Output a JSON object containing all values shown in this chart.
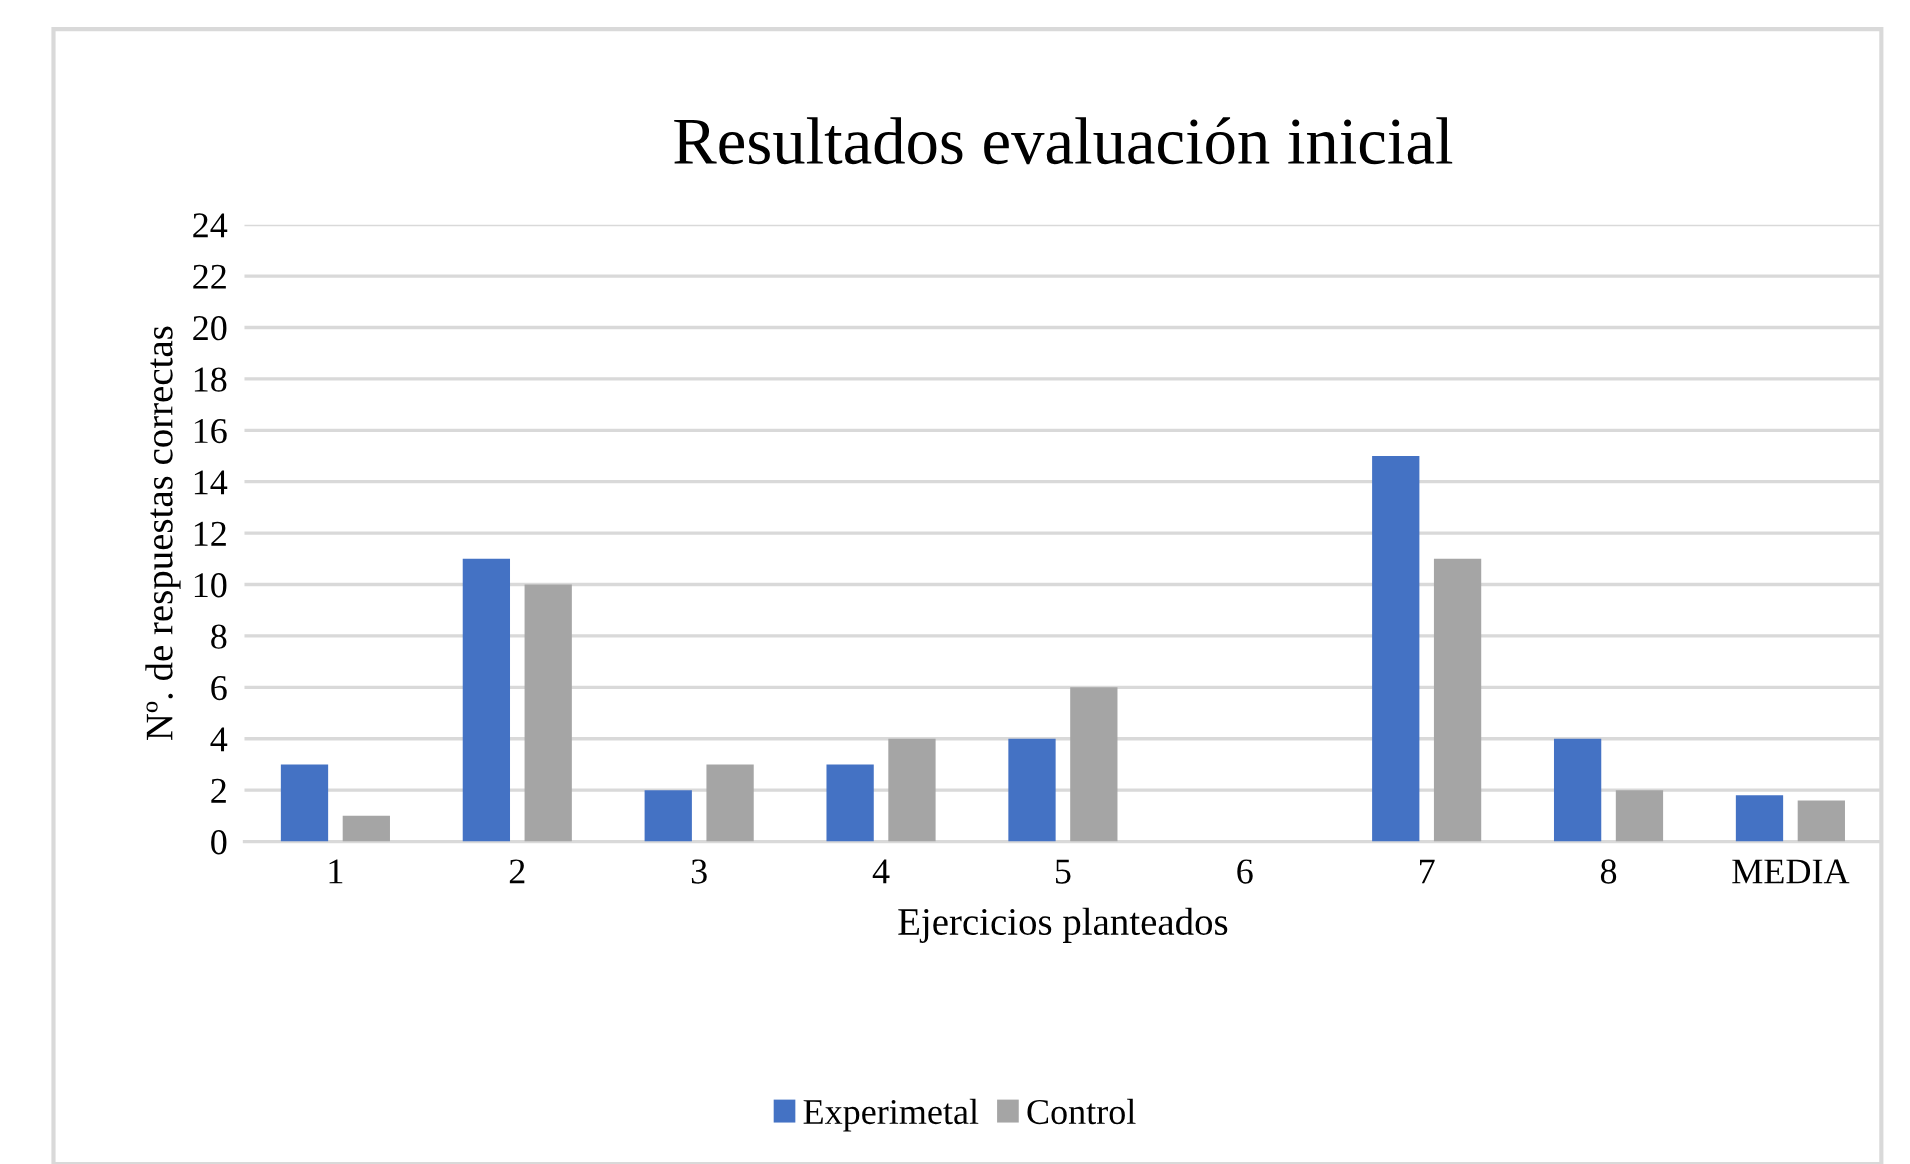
{
  "chart_data": {
    "type": "bar",
    "title": "Resultados evaluación inicial",
    "xlabel": "Ejercicios planteados",
    "ylabel": "Nº. de respuestas correctas",
    "categories": [
      "1",
      "2",
      "3",
      "4",
      "5",
      "6",
      "7",
      "8",
      "MEDIA"
    ],
    "series": [
      {
        "name": "Experimetal",
        "color": "#4472c4",
        "values": [
          3,
          11,
          2,
          3,
          4,
          0,
          15,
          4,
          1.8
        ]
      },
      {
        "name": "Control",
        "color": "#a5a5a5",
        "values": [
          1,
          10,
          3,
          4,
          6,
          0,
          11,
          2,
          1.6
        ]
      }
    ],
    "ylim": [
      0,
      24
    ],
    "yticks": [
      0,
      2,
      4,
      6,
      8,
      10,
      12,
      14,
      16,
      18,
      20,
      22,
      24
    ],
    "grid": "y",
    "legend": "bottom"
  }
}
